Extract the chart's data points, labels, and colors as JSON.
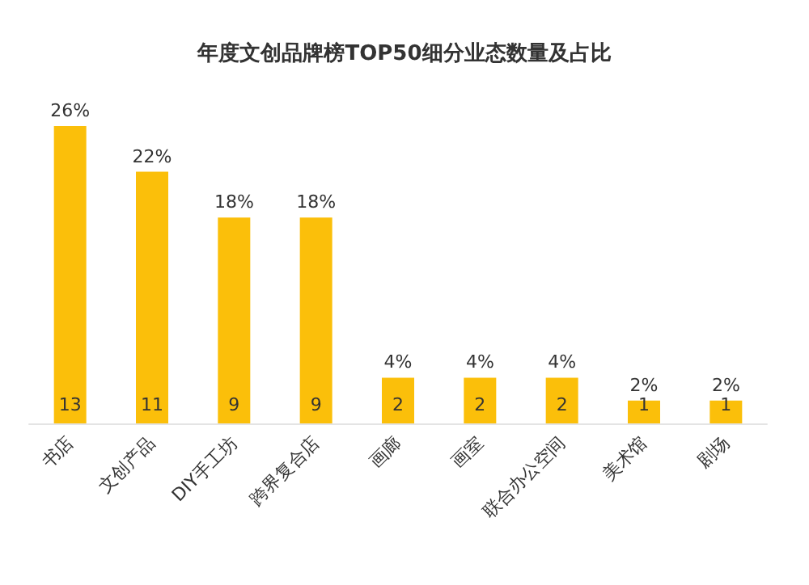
{
  "chart_data": {
    "type": "bar",
    "title": "年度文创品牌榜TOP50细分业态数量及占比",
    "categories": [
      "书店",
      "文创产品",
      "DIY手工坊",
      "跨界复合店",
      "画廊",
      "画室",
      "联合办公空间",
      "美术馆",
      "剧场"
    ],
    "values": [
      13,
      11,
      9,
      9,
      2,
      2,
      2,
      1,
      1
    ],
    "color": "#fbbf0a",
    "data_labels": true,
    "annotations": [
      {
        "text": "26%",
        "x": "书店",
        "y": 13
      },
      {
        "text": "22%",
        "x": "文创产品",
        "y": 11
      },
      {
        "text": "18%",
        "x": "DIY手工坊",
        "y": 9
      },
      {
        "text": "18%",
        "x": "跨界复合店",
        "y": 9
      },
      {
        "text": "4%",
        "x": "画廊",
        "y": 2
      },
      {
        "text": "4%",
        "x": "画室",
        "y": 2
      },
      {
        "text": "4%",
        "x": "联合办公空间",
        "y": 2
      },
      {
        "text": "2%",
        "x": "美术馆",
        "y": 1
      },
      {
        "text": "2%",
        "x": "剧场",
        "y": 1
      }
    ]
  }
}
